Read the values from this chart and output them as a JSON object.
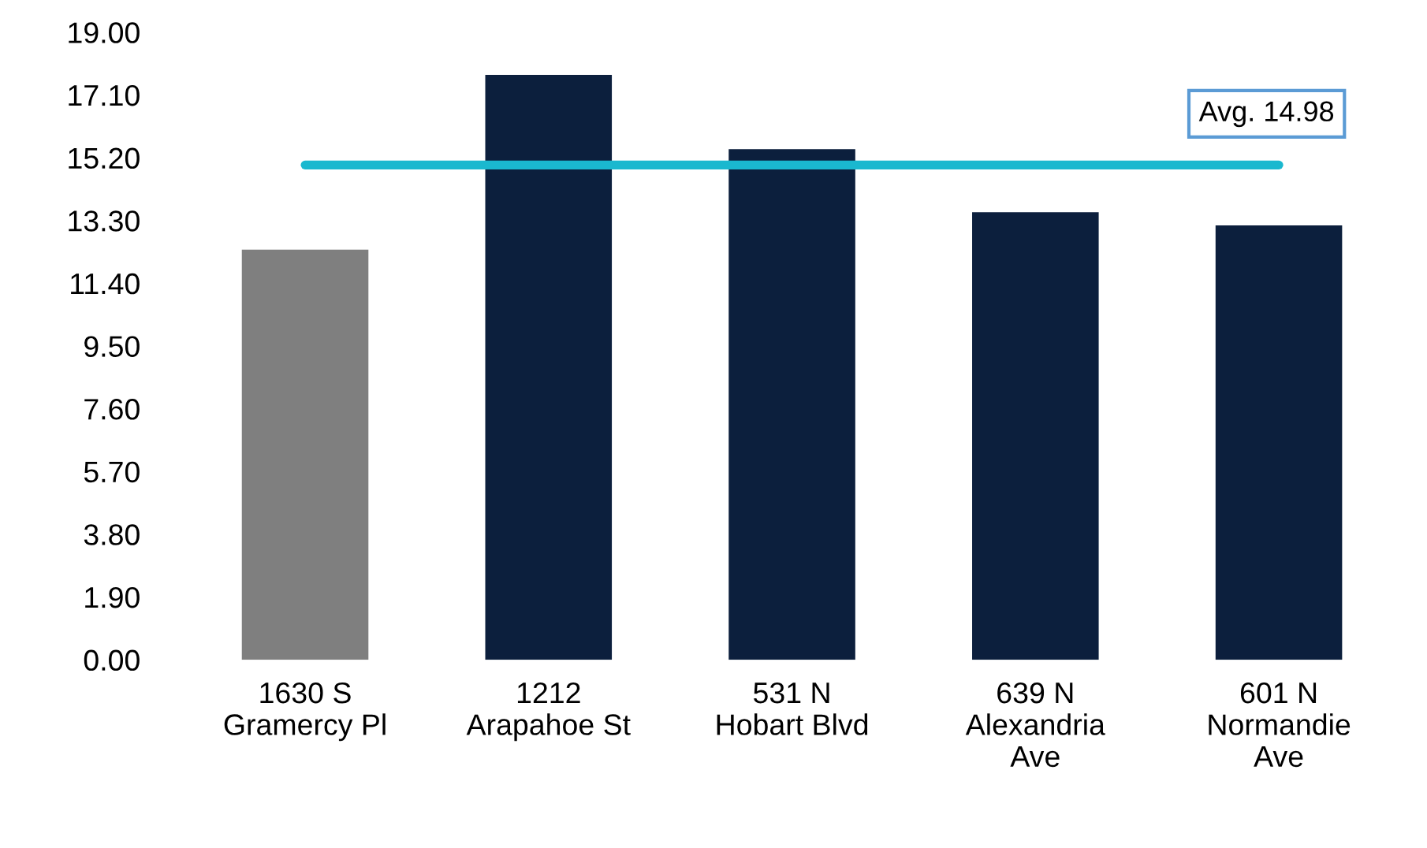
{
  "chart_data": {
    "type": "bar",
    "categories": [
      "1630 S\nGramercy Pl",
      "1212\nArapahoe St",
      "531 N\nHobart Blvd",
      "639 N\nAlexandria\nAve",
      "601 N\nNormandie\nAve"
    ],
    "values": [
      12.42,
      17.71,
      15.46,
      13.55,
      13.15
    ],
    "colors": [
      "#7f7f7f",
      "#0c1f3d",
      "#0c1f3d",
      "#0c1f3d",
      "#0c1f3d"
    ],
    "ylim": [
      0,
      19
    ],
    "yticks": [
      {
        "value": 0,
        "label": "0.00"
      },
      {
        "value": 1.9,
        "label": "1.90"
      },
      {
        "value": 3.8,
        "label": "3.80"
      },
      {
        "value": 5.7,
        "label": "5.70"
      },
      {
        "value": 7.6,
        "label": "7.60"
      },
      {
        "value": 9.5,
        "label": "9.50"
      },
      {
        "value": 11.4,
        "label": "11.40"
      },
      {
        "value": 13.3,
        "label": "13.30"
      },
      {
        "value": 15.2,
        "label": "15.20"
      },
      {
        "value": 17.1,
        "label": "17.10"
      },
      {
        "value": 19,
        "label": "19.00"
      }
    ],
    "ref_lines": [
      {
        "axis": "y",
        "value": 14.98,
        "label": "Avg. 14.98",
        "color": "#1ab8cf"
      }
    ],
    "grid": false,
    "legend": false
  }
}
